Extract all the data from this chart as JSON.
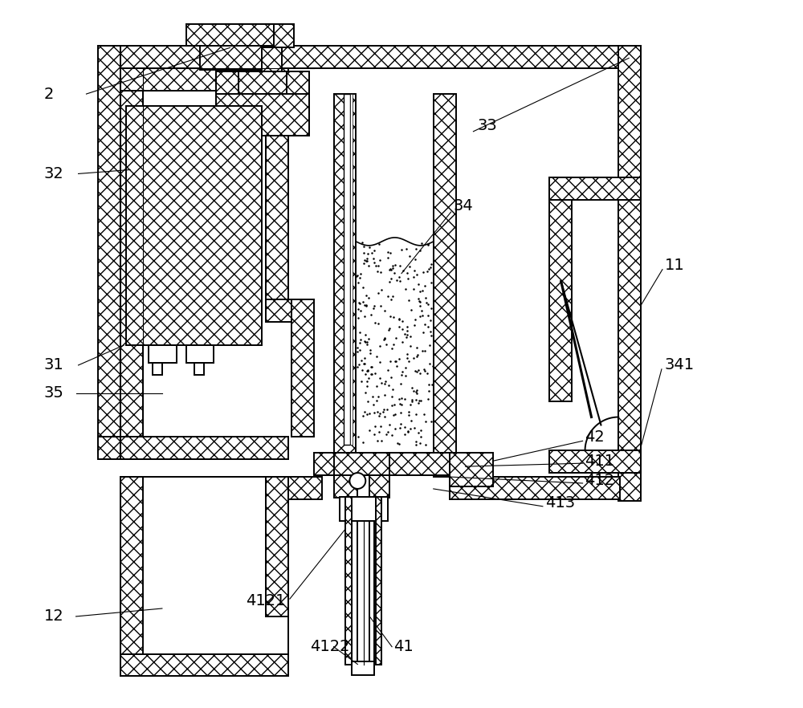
{
  "bg_color": "#ffffff",
  "figsize": [
    10.0,
    8.82
  ],
  "dpi": 100,
  "lw": 1.4,
  "hatch": "xx",
  "label_fs": 14
}
